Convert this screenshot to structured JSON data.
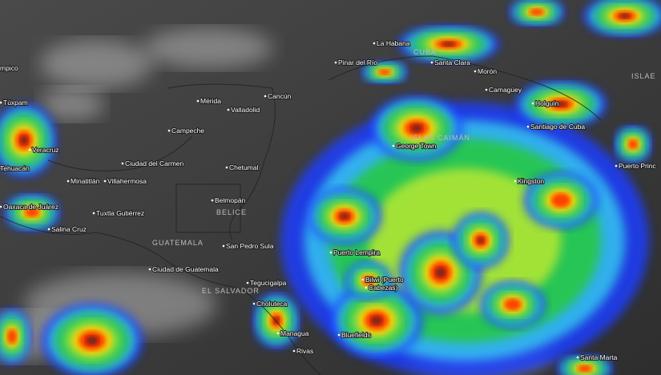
{
  "places": [
    "mpico",
    "Túxpam",
    "Veracruz",
    "Tehuacán",
    "Oaxaca de Juárez",
    "Salina Cruz",
    "Tuxtla Gutiérrez",
    "Minatitlán",
    "Villahermosa",
    "Ciudad del Carmen",
    "Campeche",
    "Mérida",
    "Valladolid",
    "Cancún",
    "Chetumal",
    "Belmopán",
    "Ciudad de Guatemala",
    "San Pedro Sula",
    "Tegucigalpa",
    "Choluteca",
    "Managua",
    "Rivas",
    "Bluefields",
    "Bilwi (Puerto",
    "Cabezas)",
    "Puerto Lempira",
    "George Town",
    "Kingston",
    "La Habana",
    "Pinar del Río",
    "Santa Clara",
    "Morón",
    "Camagüey",
    "Holguín",
    "Santiago de Cuba",
    "Puerto Princ",
    "Santa Marta"
  ],
  "countries": [
    "CUBA",
    "BELICE",
    "GUATEMALA",
    "EL SALVADOR",
    "ISLAS CAIMÁN",
    "ISLAE"
  ]
}
